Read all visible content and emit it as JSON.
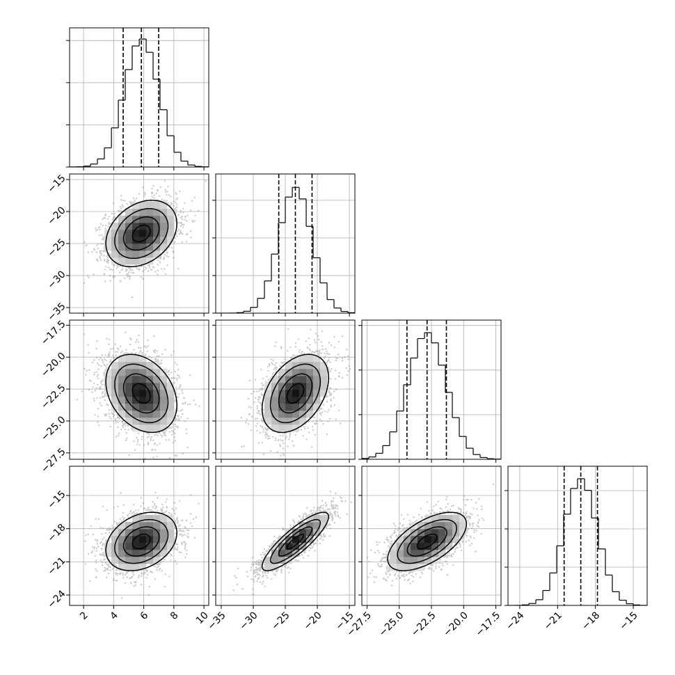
{
  "chart_data": {
    "type": "corner",
    "color": "#000000",
    "grid": true,
    "params": [
      {
        "xlim": [
          1.07,
          10.32
        ],
        "xticks": [
          2,
          4,
          6,
          8,
          10
        ],
        "quantiles": [
          4.63,
          5.84,
          6.99
        ],
        "hist": {
          "bins": [
            1.07,
            1.53,
            2.0,
            2.46,
            2.92,
            3.38,
            3.85,
            4.31,
            4.77,
            5.23,
            5.7,
            6.16,
            6.62,
            7.08,
            7.55,
            8.01,
            8.47,
            8.93,
            9.4,
            9.86,
            10.32
          ],
          "counts": [
            1,
            3,
            11,
            35,
            96,
            227,
            464,
            793,
            1155,
            1435,
            1517,
            1360,
            1041,
            679,
            371,
            175,
            70,
            24,
            7,
            2
          ],
          "ylim": [
            0,
            1650
          ],
          "yticks": [
            0,
            500,
            1000,
            1500
          ]
        }
      },
      {
        "xlim": [
          -35.86,
          -14.14
        ],
        "xticks": [
          {
            "value": -35,
            "label": "−35"
          },
          {
            "value": -30,
            "label": "−30"
          },
          {
            "value": -25,
            "label": "−25"
          },
          {
            "value": -20,
            "label": "−20"
          },
          {
            "value": -15,
            "label": "−15"
          }
        ],
        "ylim": [
          -35.87,
          -14.13
        ],
        "yticks": [
          {
            "value": -15,
            "label": "−15"
          },
          {
            "value": -20,
            "label": "−20"
          },
          {
            "value": -25,
            "label": "−25"
          },
          {
            "value": -30,
            "label": "−30"
          },
          {
            "value": -35,
            "label": "−35"
          }
        ],
        "quantiles": [
          -26.02,
          -23.43,
          -20.83
        ],
        "hist": {
          "bins": [
            -35.86,
            -34.77,
            -33.69,
            -32.6,
            -31.52,
            -30.43,
            -29.34,
            -28.26,
            -27.17,
            -26.09,
            -25.0,
            -23.91,
            -22.83,
            -21.74,
            -20.66,
            -19.57,
            -18.48,
            -17.4,
            -16.31,
            -15.23,
            -14.14
          ],
          "counts": [
            0,
            0,
            1,
            7,
            25,
            77,
            197,
            428,
            785,
            1203,
            1543,
            1672,
            1518,
            1154,
            736,
            402,
            180,
            68,
            22,
            6
          ],
          "ylim": [
            0,
            1850
          ],
          "yticks": [
            0,
            500,
            1000,
            1500
          ]
        }
      },
      {
        "xlim": [
          -27.9,
          -17.1
        ],
        "xticks": [
          {
            "value": -27.5,
            "label": "−27.5"
          },
          {
            "value": -25,
            "label": "−25.0"
          },
          {
            "value": -22.5,
            "label": "−22.5"
          },
          {
            "value": -20,
            "label": "−20.0"
          },
          {
            "value": -17.5,
            "label": "−17.5"
          }
        ],
        "ylim": [
          -28.0,
          -17.1
        ],
        "yticks": [
          {
            "value": -17.5,
            "label": "−17.5"
          },
          {
            "value": -20,
            "label": "−20.0"
          },
          {
            "value": -22.5,
            "label": "−22.5"
          },
          {
            "value": -25,
            "label": "−25.0"
          },
          {
            "value": -27.5,
            "label": "−27.5"
          }
        ],
        "quantiles": [
          -24.4,
          -22.84,
          -21.34
        ],
        "hist": {
          "bins": [
            -27.9,
            -27.36,
            -26.82,
            -26.28,
            -25.74,
            -25.2,
            -24.66,
            -24.12,
            -23.58,
            -23.04,
            -22.5,
            -21.96,
            -21.42,
            -20.88,
            -20.34,
            -19.8,
            -19.26,
            -18.72,
            -18.18,
            -17.64,
            -17.1
          ],
          "counts": [
            9,
            26,
            67,
            153,
            307,
            541,
            835,
            1135,
            1353,
            1419,
            1305,
            1055,
            750,
            467,
            256,
            124,
            53,
            20,
            6,
            2
          ],
          "ylim": [
            0,
            1560
          ],
          "yticks": [
            0,
            500,
            1000,
            1500
          ]
        }
      },
      {
        "xlim": [
          -24.93,
          -13.9
        ],
        "xticks": [
          {
            "value": -24,
            "label": "−24"
          },
          {
            "value": -21,
            "label": "−21"
          },
          {
            "value": -18,
            "label": "−18"
          },
          {
            "value": -15,
            "label": "−15"
          }
        ],
        "ylim": [
          -24.94,
          -12.36
        ],
        "yticks": [
          {
            "value": -15,
            "label": "−15"
          },
          {
            "value": -18,
            "label": "−18"
          },
          {
            "value": -21,
            "label": "−21"
          },
          {
            "value": -24,
            "label": "−24"
          }
        ],
        "quantiles": [
          -20.48,
          -19.16,
          -17.84
        ],
        "hist": {
          "bins": [
            -24.93,
            -24.38,
            -23.83,
            -23.28,
            -22.72,
            -22.17,
            -21.62,
            -21.07,
            -20.52,
            -19.97,
            -19.42,
            -18.86,
            -18.31,
            -17.76,
            -17.21,
            -16.66,
            -16.11,
            -15.55,
            -15.0,
            -14.45,
            -13.9
          ],
          "counts": [
            0,
            1,
            7,
            25,
            74,
            195,
            424,
            778,
            1192,
            1528,
            1655,
            1503,
            1142,
            738,
            397,
            179,
            68,
            22,
            6,
            1
          ],
          "ylim": [
            0,
            1818
          ],
          "yticks": [
            0,
            500,
            1000,
            1500
          ]
        }
      }
    ],
    "pairs": [
      {
        "x": 0,
        "y": 1,
        "corr": 0.3
      },
      {
        "x": 0,
        "y": 2,
        "corr": -0.3
      },
      {
        "x": 1,
        "y": 2,
        "corr": 0.4
      },
      {
        "x": 0,
        "y": 3,
        "corr": 0.3
      },
      {
        "x": 1,
        "y": 3,
        "corr": 0.85
      },
      {
        "x": 2,
        "y": 3,
        "corr": 0.6
      }
    ]
  }
}
